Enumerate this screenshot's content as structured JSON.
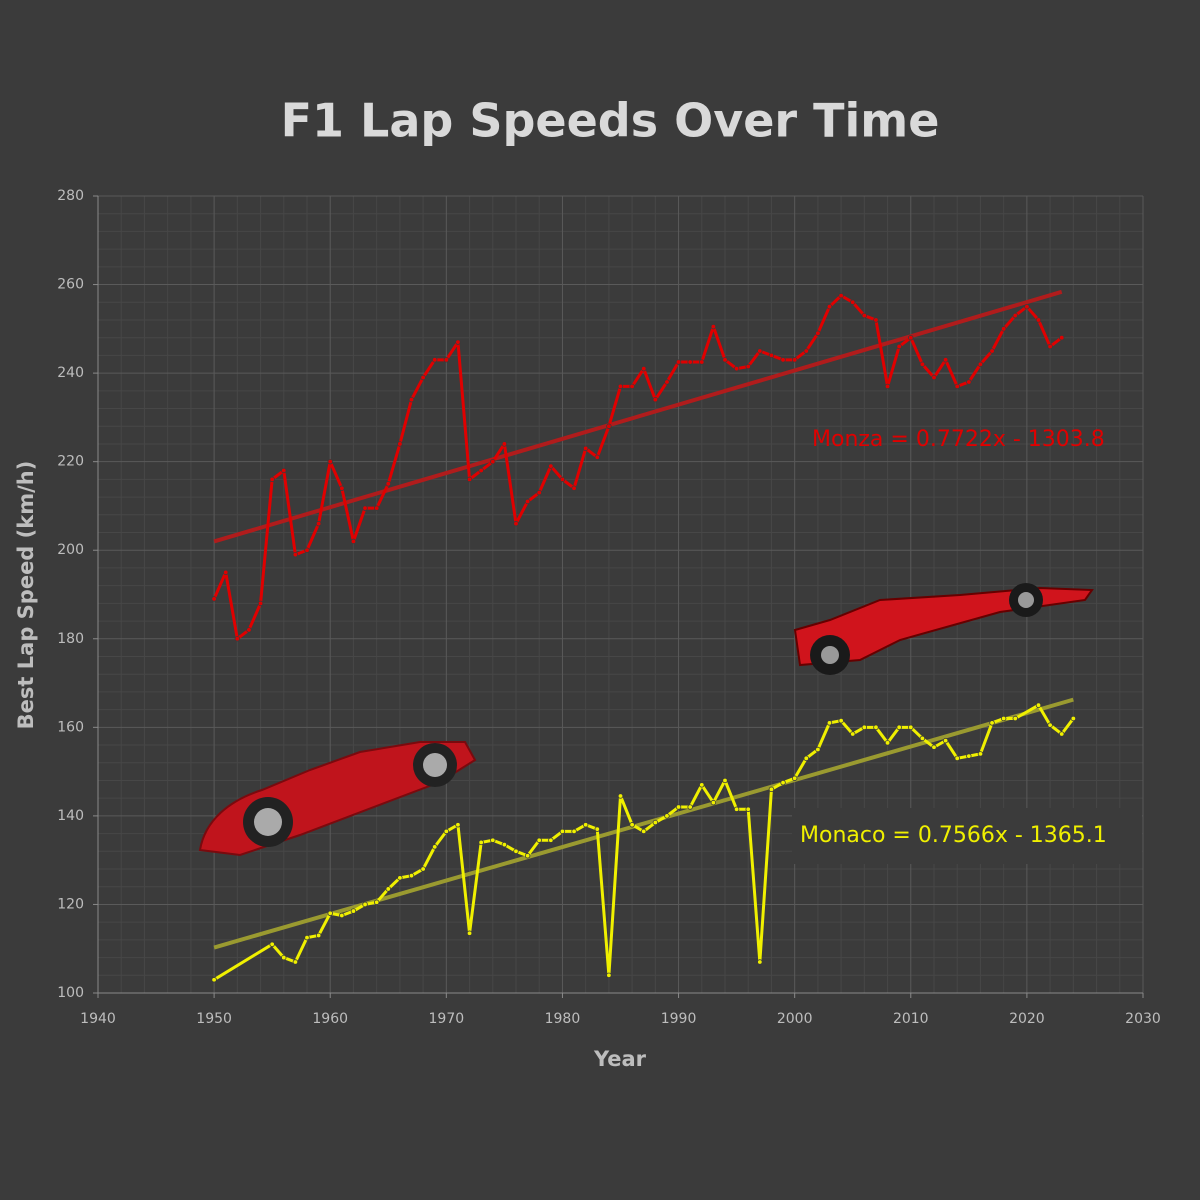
{
  "chart_data": {
    "type": "line",
    "title": "F1 Lap Speeds Over Time",
    "x_label": "Year",
    "y_label": "Best Lap Speed (km/h)",
    "xlim": [
      1940,
      2030
    ],
    "xticks": [
      1940,
      1950,
      1960,
      1970,
      1980,
      1990,
      2000,
      2010,
      2020,
      2030
    ],
    "ylim": [
      100,
      280
    ],
    "yticks": [
      100,
      120,
      140,
      160,
      180,
      200,
      220,
      240,
      260,
      280
    ],
    "grid": true,
    "minor_grid": true,
    "series": [
      {
        "name": "Monza",
        "color": "#e00000",
        "trend_color": "#b01c1c",
        "trend": {
          "slope": 0.7722,
          "intercept": -1303.8,
          "label": "Monza = 0.7722x - 1303.8"
        },
        "x": [
          1950,
          1951,
          1952,
          1953,
          1954,
          1955,
          1956,
          1957,
          1958,
          1959,
          1960,
          1961,
          1962,
          1963,
          1964,
          1965,
          1966,
          1967,
          1968,
          1969,
          1970,
          1971,
          1972,
          1973,
          1974,
          1975,
          1976,
          1977,
          1978,
          1979,
          1980,
          1981,
          1982,
          1983,
          1984,
          1985,
          1986,
          1987,
          1988,
          1989,
          1990,
          1991,
          1992,
          1993,
          1994,
          1995,
          1996,
          1997,
          1998,
          1999,
          2000,
          2001,
          2002,
          2003,
          2004,
          2005,
          2006,
          2007,
          2008,
          2009,
          2010,
          2011,
          2012,
          2013,
          2014,
          2015,
          2016,
          2017,
          2018,
          2019,
          2020,
          2021,
          2022,
          2023
        ],
        "values": [
          189,
          195,
          180,
          182,
          188,
          216,
          218,
          199,
          200,
          206,
          220,
          214,
          202,
          209.5,
          209.5,
          215,
          224,
          234,
          239,
          243,
          243,
          247,
          216,
          218,
          220,
          224,
          206,
          211,
          213,
          219,
          216,
          214,
          223,
          221,
          228,
          237,
          237,
          241,
          234,
          238,
          242.5,
          242.5,
          242.5,
          250.5,
          243,
          241,
          241.5,
          245,
          244,
          243,
          243,
          245,
          249,
          255,
          257.5,
          256,
          253,
          252,
          237,
          246,
          248,
          242,
          239,
          243,
          237,
          238,
          242,
          245,
          250,
          253,
          255,
          252,
          246,
          248
        ]
      },
      {
        "name": "Monaco",
        "color": "#f0f000",
        "trend_color": "#9a9a30",
        "trend": {
          "slope": 0.7566,
          "intercept": -1365.1,
          "label": "Monaco = 0.7566x - 1365.1"
        },
        "x": [
          1950,
          1955,
          1956,
          1957,
          1958,
          1959,
          1960,
          1961,
          1962,
          1963,
          1964,
          1965,
          1966,
          1967,
          1968,
          1969,
          1970,
          1971,
          1972,
          1973,
          1974,
          1975,
          1976,
          1977,
          1978,
          1979,
          1980,
          1981,
          1982,
          1983,
          1984,
          1985,
          1986,
          1987,
          1988,
          1989,
          1990,
          1991,
          1992,
          1993,
          1994,
          1995,
          1996,
          1997,
          1998,
          1999,
          2000,
          2001,
          2002,
          2003,
          2004,
          2005,
          2006,
          2007,
          2008,
          2009,
          2010,
          2011,
          2012,
          2013,
          2014,
          2015,
          2016,
          2017,
          2018,
          2019,
          2021,
          2022,
          2023,
          2024
        ],
        "values": [
          103,
          111,
          108,
          107,
          112.5,
          113,
          118,
          117.5,
          118.5,
          120,
          120.5,
          123.5,
          126,
          126.5,
          128,
          133,
          136.5,
          138,
          113.5,
          134,
          134.5,
          133.5,
          132,
          131,
          134.5,
          134.5,
          136.5,
          136.5,
          138,
          137,
          104,
          144.5,
          138,
          136.5,
          138.5,
          140,
          142,
          142,
          147,
          143,
          148,
          141.5,
          141.5,
          107,
          146,
          147.5,
          148.5,
          153,
          155,
          161,
          161.5,
          158.5,
          160,
          160,
          156.5,
          160,
          160,
          157.5,
          155.5,
          157,
          153,
          153.5,
          154,
          161,
          162,
          162,
          165,
          160.5,
          158.5,
          162
        ]
      }
    ]
  }
}
